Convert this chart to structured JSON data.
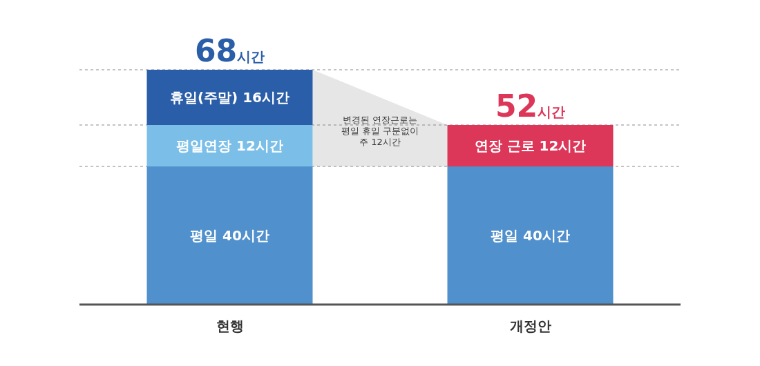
{
  "chart_data": {
    "type": "bar",
    "stacked": true,
    "categories": [
      "현행",
      "개정안"
    ],
    "ylim": [
      0,
      68
    ],
    "series": [
      {
        "colors": [
          "#5090cc",
          "#5090cc"
        ],
        "values": [
          40,
          40
        ],
        "value_labels": [
          "평일 40시간",
          "평일 40시간"
        ]
      },
      {
        "colors": [
          "#7bbfe8",
          "#dc3659"
        ],
        "values": [
          12,
          12
        ],
        "value_labels": [
          "평일연장 12시간",
          "연장 근로 12시간"
        ]
      },
      {
        "colors": [
          "#2b5ea8",
          null
        ],
        "values": [
          16,
          null
        ],
        "value_labels": [
          "휴일(주말) 16시간",
          null
        ]
      }
    ],
    "totals": [
      "68시간",
      "52시간"
    ],
    "ref_lines": [
      {
        "axis": "y",
        "value": 40,
        "color": "#888888",
        "line_style": "dashed"
      },
      {
        "axis": "y",
        "value": 52,
        "color": "#888888",
        "line_style": "dashed"
      },
      {
        "axis": "y",
        "value": 68,
        "color": "#888888",
        "line_style": "dashed"
      }
    ],
    "annotations": [
      "변경된 연장근로는\n평일 휴일 구분없이\n주 12시간"
    ]
  }
}
